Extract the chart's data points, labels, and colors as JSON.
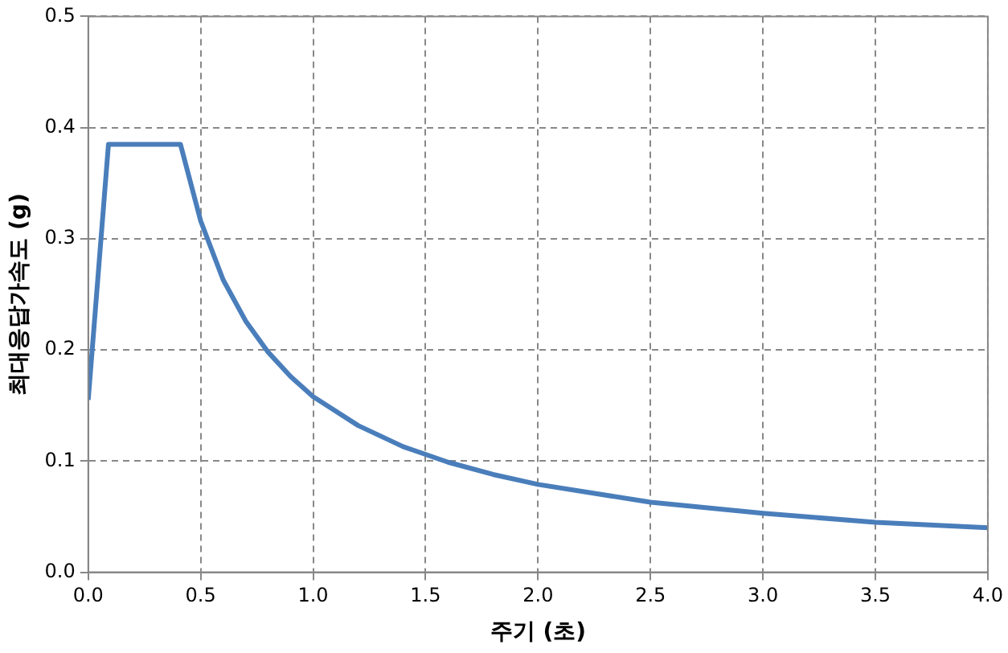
{
  "chart_data": {
    "type": "line",
    "xlabel": "주기 (초)",
    "ylabel": "최대응답가속도 (g)",
    "x": [
      0,
      0.09,
      0.41,
      0.5,
      0.6,
      0.7,
      0.8,
      0.9,
      1.0,
      1.2,
      1.4,
      1.6,
      1.8,
      2.0,
      2.5,
      3.0,
      3.5,
      4.0
    ],
    "series": [
      {
        "color": "#4a7ebb",
        "values": [
          0.155,
          0.385,
          0.385,
          0.316,
          0.263,
          0.226,
          0.198,
          0.176,
          0.158,
          0.132,
          0.113,
          0.099,
          0.088,
          0.079,
          0.063,
          0.053,
          0.045,
          0.04
        ]
      }
    ],
    "xlim": [
      0,
      4
    ],
    "xticks": [
      {
        "value": 0,
        "label": "0.0"
      },
      0.5,
      {
        "value": 1,
        "label": "1.0"
      },
      1.5,
      {
        "value": 2,
        "label": "2.0"
      },
      2.5,
      {
        "value": 3,
        "label": "3.0"
      },
      3.5,
      {
        "value": 4,
        "label": "4.0"
      }
    ],
    "ylim": [
      0,
      0.5
    ],
    "yticks": [
      {
        "value": 0,
        "label": "0.0"
      },
      0.1,
      0.2,
      0.3,
      0.4,
      0.5
    ],
    "grid": true,
    "legend": false,
    "marker": "none",
    "line_style": "solid"
  }
}
